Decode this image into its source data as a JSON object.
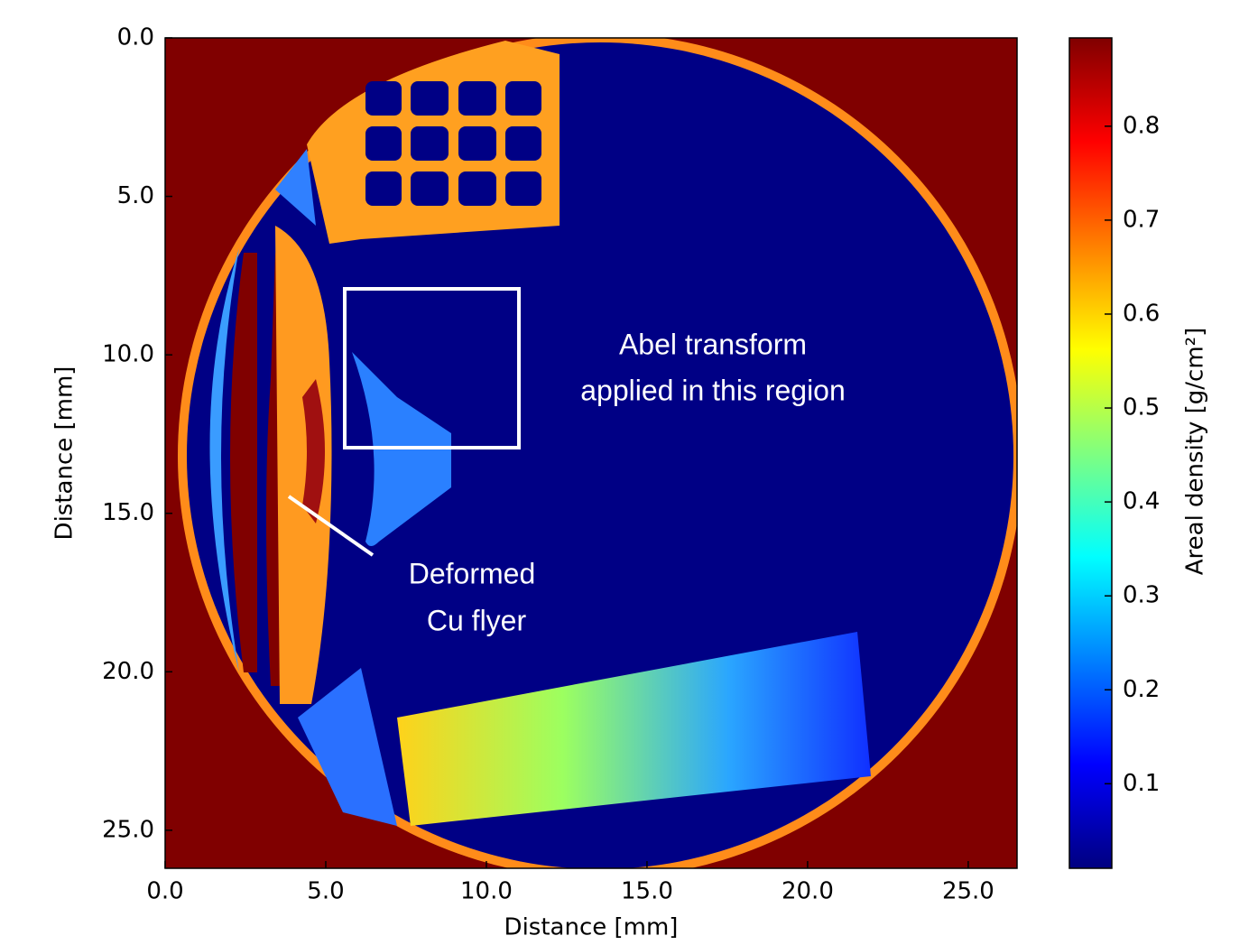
{
  "chart_data": {
    "type": "image",
    "xlabel": "Distance [mm]",
    "ylabel": "Distance [mm]",
    "xlim": [
      0,
      26.52
    ],
    "ylim": [
      0,
      26.2
    ],
    "y_inverted": true,
    "xticks": [
      {
        "value": 0,
        "label": "0.0"
      },
      {
        "value": 5,
        "label": "5.0"
      },
      {
        "value": 10,
        "label": "10.0"
      },
      {
        "value": 15,
        "label": "15.0"
      },
      {
        "value": 20,
        "label": "20.0"
      },
      {
        "value": 25,
        "label": "25.0"
      }
    ],
    "yticks": [
      {
        "value": 0,
        "label": "0.0"
      },
      {
        "value": 5,
        "label": "5.0"
      },
      {
        "value": 10,
        "label": "10.0"
      },
      {
        "value": 15,
        "label": "15.0"
      },
      {
        "value": 20,
        "label": "20.0"
      },
      {
        "value": 25,
        "label": "25.0"
      }
    ],
    "colorbar": {
      "label": "Areal density [g/cm²]",
      "colormap": "jet",
      "lim": [
        0.01,
        0.894
      ],
      "ticks": [
        0.1,
        0.2,
        0.3,
        0.4,
        0.5,
        0.6,
        0.7,
        0.8
      ]
    },
    "annotations": [
      [
        "Abel transform",
        "applied in this region"
      ],
      [
        "Deformed",
        "Cu flyer"
      ]
    ]
  }
}
